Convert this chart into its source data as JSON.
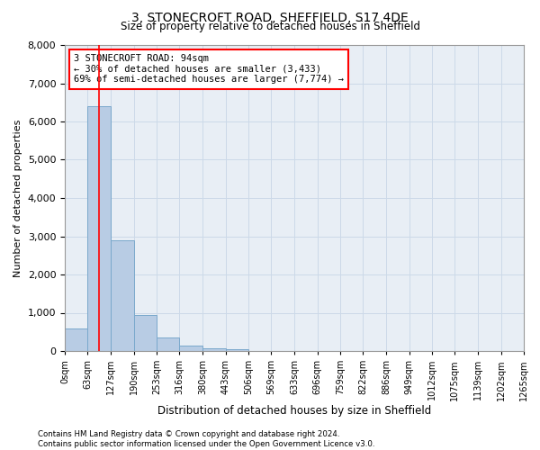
{
  "title_line1": "3, STONECROFT ROAD, SHEFFIELD, S17 4DE",
  "title_line2": "Size of property relative to detached houses in Sheffield",
  "xlabel": "Distribution of detached houses by size in Sheffield",
  "ylabel": "Number of detached properties",
  "footnote_line1": "Contains HM Land Registry data © Crown copyright and database right 2024.",
  "footnote_line2": "Contains public sector information licensed under the Open Government Licence v3.0.",
  "property_sqm": 94,
  "annotation_line1": "3 STONECROFT ROAD: 94sqm",
  "annotation_line2": "← 30% of detached houses are smaller (3,433)",
  "annotation_line3": "69% of semi-detached houses are larger (7,774) →",
  "bar_edges": [
    0,
    63,
    127,
    190,
    253,
    316,
    380,
    443,
    506,
    569,
    633,
    696,
    759,
    822,
    886,
    949,
    1012,
    1075,
    1139,
    1202,
    1265
  ],
  "bar_heights": [
    600,
    6400,
    2900,
    950,
    350,
    150,
    75,
    50,
    0,
    0,
    0,
    0,
    0,
    0,
    0,
    0,
    0,
    0,
    0,
    0
  ],
  "bar_color": "#b8cce4",
  "bar_edgecolor": "#7aa8cc",
  "grid_color": "#ccd9e8",
  "bg_color": "#e8eef5",
  "redline_x": 94,
  "ylim": [
    0,
    8000
  ],
  "yticks": [
    0,
    1000,
    2000,
    3000,
    4000,
    5000,
    6000,
    7000,
    8000
  ]
}
